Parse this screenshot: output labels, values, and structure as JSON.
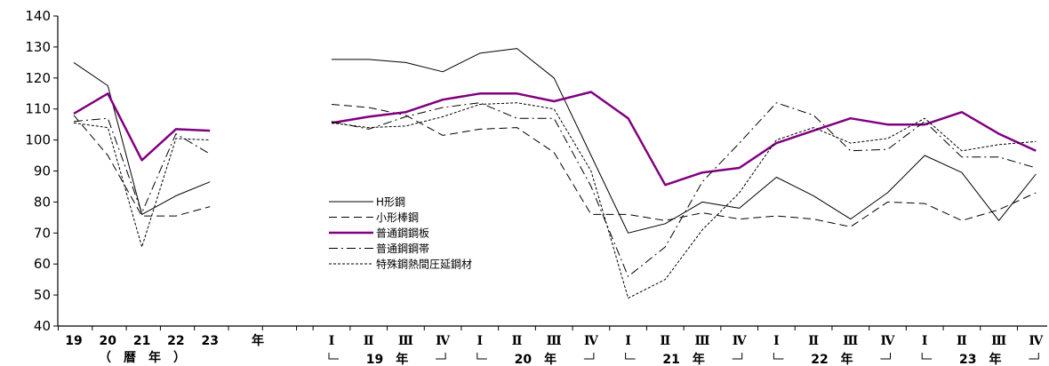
{
  "chart_data": {
    "type": "line",
    "ylim": [
      40,
      140
    ],
    "yticks": [
      "40",
      "50",
      "60",
      "70",
      "80",
      "90",
      "100",
      "110",
      "120",
      "130",
      "140"
    ],
    "annual": {
      "ticks": [
        "19",
        "20",
        "21",
        "22",
        "23"
      ],
      "unit": "年",
      "group_label": "（　暦　年　）"
    },
    "quarterly": {
      "ticks": [
        "Ⅰ",
        "Ⅱ",
        "Ⅲ",
        "Ⅳ",
        "Ⅰ",
        "Ⅱ",
        "Ⅲ",
        "Ⅳ",
        "Ⅰ",
        "Ⅱ",
        "Ⅲ",
        "Ⅳ",
        "Ⅰ",
        "Ⅱ",
        "Ⅲ",
        "Ⅳ",
        "Ⅰ",
        "Ⅱ",
        "Ⅲ",
        "Ⅳ"
      ],
      "years": [
        "19　年",
        "20　年",
        "21　年",
        "22　年",
        "23　年"
      ]
    },
    "series": [
      {
        "name": "H形鋼",
        "color": "#000000",
        "style": "solid",
        "annual": [
          125,
          117.5,
          76,
          82,
          86.5
        ],
        "quarterly": [
          126,
          126,
          125,
          122,
          128,
          129.5,
          120,
          95,
          70,
          73,
          80,
          78,
          88,
          82,
          74.5,
          83,
          95,
          89.5,
          74,
          89
        ]
      },
      {
        "name": "小形棒鋼",
        "color": "#000000",
        "style": "dashed",
        "annual": [
          108,
          95,
          75.5,
          75.5,
          78.5
        ],
        "quarterly": [
          111.5,
          110.5,
          108,
          101.5,
          103.5,
          104,
          96,
          76,
          76,
          74,
          76.5,
          74.5,
          75.5,
          74.5,
          72,
          80,
          79.5,
          74,
          77.5,
          83
        ]
      },
      {
        "name": "普通鋼鋼板",
        "color": "#800080",
        "style": "thick",
        "annual": [
          108.5,
          115,
          93.5,
          103.5,
          103
        ],
        "quarterly": [
          105.5,
          107.5,
          109,
          113,
          115,
          115,
          112.5,
          115.5,
          107,
          85.5,
          89.5,
          91,
          99,
          103,
          107,
          105,
          105,
          109,
          102,
          96.5
        ]
      },
      {
        "name": "普通鋼鋼帯",
        "color": "#000000",
        "style": "dashdot",
        "annual": [
          106,
          107,
          76.5,
          102,
          95.5
        ],
        "quarterly": [
          106,
          103.5,
          107.5,
          110.5,
          112,
          107,
          107,
          85,
          56,
          65.5,
          86.5,
          99,
          112,
          108,
          96.5,
          97,
          106,
          94.5,
          94.5,
          91
        ]
      },
      {
        "name": "特殊鋼熱間圧延鋼材",
        "color": "#000000",
        "style": "dotted",
        "annual": [
          105.5,
          104,
          65.5,
          100.5,
          100
        ],
        "quarterly": [
          105.5,
          104,
          104.5,
          107.5,
          111.5,
          112,
          110,
          90,
          49,
          55,
          71,
          83,
          100,
          104,
          99,
          100.5,
          107,
          96.5,
          98.5,
          99.5
        ]
      }
    ]
  }
}
